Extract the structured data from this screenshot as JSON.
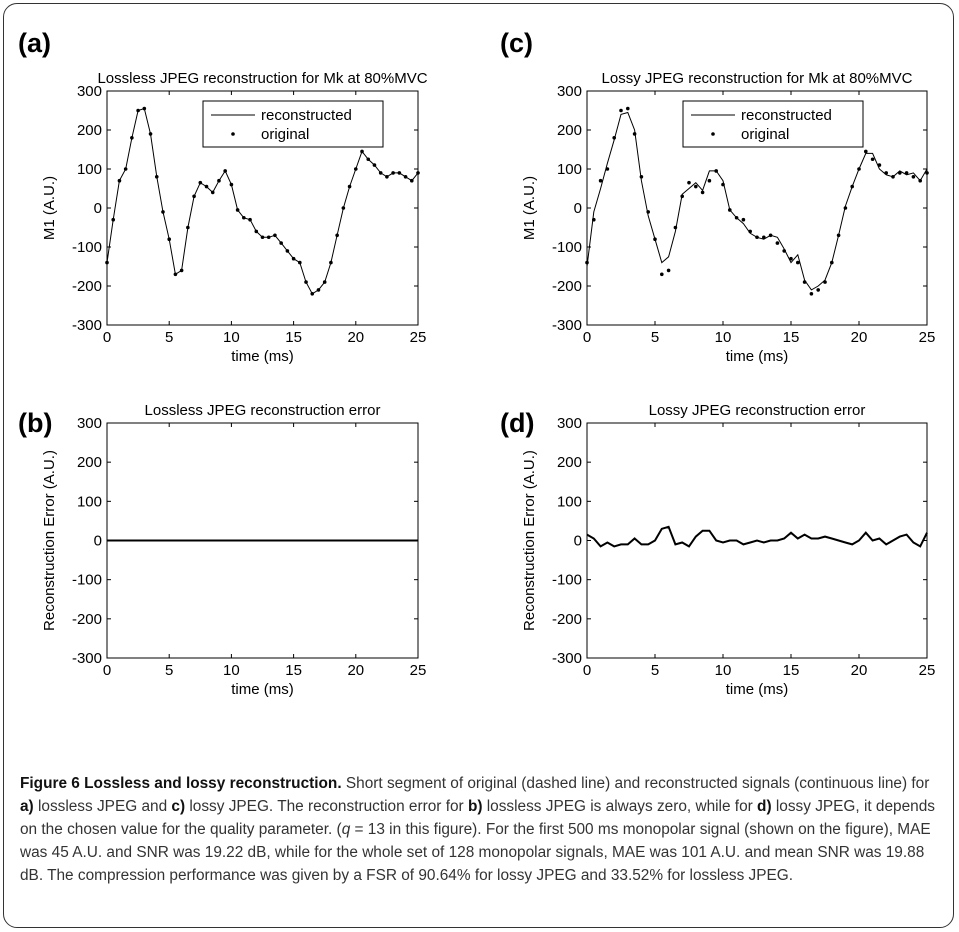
{
  "caption": {
    "label": "Figure 6",
    "heading": "Lossless and lossy reconstruction.",
    "s1": " Short segment of original (dashed line) and reconstructed signals (continuous line) for ",
    "a": "a)",
    "s2": " lossless JPEG and ",
    "c": "c)",
    "s3": " lossy JPEG. The reconstruction error for ",
    "b": "b)",
    "s4": " lossless JPEG is always zero, while for ",
    "d": "d)",
    "s5": " lossy JPEG, it depends on the chosen value for the quality parameter. (",
    "q": "q",
    "s6": " = 13 in this figure). For the first 500 ms monopolar signal (shown on the figure), MAE was 45 A.U. and SNR was 19.22 dB, while for the whole set of 128 monopolar signals, MAE was 101 A.U. and mean SNR was 19.88 dB. The compression performance was given by a FSR of 90.64% for lossy JPEG and 33.52% for lossless JPEG."
  },
  "chart_data": [
    {
      "type": "line",
      "panel_label": "(a)",
      "title": "Lossless JPEG reconstruction for Mk at 80%MVC",
      "xlabel": "time (ms)",
      "ylabel": "M1 (A.U.)",
      "xlim": [
        0,
        25
      ],
      "ylim": [
        -300,
        300
      ],
      "xticks": [
        "0",
        "5",
        "10",
        "15",
        "20",
        "25"
      ],
      "yticks": [
        "300",
        "200",
        "100",
        "0",
        "-100",
        "-200",
        "-300"
      ],
      "legend": {
        "position": "top-center",
        "line_label": "reconstructed",
        "dot_label": "original"
      },
      "series": [
        {
          "name": "original",
          "x": [
            0,
            0.5,
            1,
            1.5,
            2,
            2.5,
            3,
            3.5,
            4,
            4.5,
            5,
            5.5,
            6,
            6.5,
            7,
            7.5,
            8,
            8.5,
            9,
            9.5,
            10,
            10.5,
            11,
            11.5,
            12,
            12.5,
            13,
            13.5,
            14,
            14.5,
            15,
            15.5,
            16,
            16.5,
            17,
            17.5,
            18,
            18.5,
            19,
            19.5,
            20,
            20.5,
            21,
            21.5,
            22,
            22.5,
            23,
            23.5,
            24,
            24.5,
            25
          ],
          "y": [
            -140,
            -30,
            70,
            100,
            180,
            250,
            255,
            190,
            80,
            -10,
            -80,
            -170,
            -160,
            -50,
            30,
            65,
            55,
            40,
            70,
            95,
            60,
            -5,
            -25,
            -30,
            -60,
            -75,
            -75,
            -70,
            -90,
            -110,
            -130,
            -140,
            -190,
            -220,
            -210,
            -190,
            -140,
            -70,
            0,
            55,
            100,
            145,
            125,
            110,
            90,
            80,
            90,
            90,
            80,
            70,
            90
          ]
        },
        {
          "name": "reconstructed",
          "x": [
            0,
            0.5,
            1,
            1.5,
            2,
            2.5,
            3,
            3.5,
            4,
            4.5,
            5,
            5.5,
            6,
            6.5,
            7,
            7.5,
            8,
            8.5,
            9,
            9.5,
            10,
            10.5,
            11,
            11.5,
            12,
            12.5,
            13,
            13.5,
            14,
            14.5,
            15,
            15.5,
            16,
            16.5,
            17,
            17.5,
            18,
            18.5,
            19,
            19.5,
            20,
            20.5,
            21,
            21.5,
            22,
            22.5,
            23,
            23.5,
            24,
            24.5,
            25
          ],
          "y": [
            -140,
            -30,
            70,
            100,
            180,
            250,
            255,
            190,
            80,
            -10,
            -80,
            -170,
            -160,
            -50,
            30,
            65,
            55,
            40,
            70,
            95,
            60,
            -5,
            -25,
            -30,
            -60,
            -75,
            -75,
            -70,
            -90,
            -110,
            -130,
            -140,
            -190,
            -220,
            -210,
            -190,
            -140,
            -70,
            0,
            55,
            100,
            145,
            125,
            110,
            90,
            80,
            90,
            90,
            80,
            70,
            90
          ]
        }
      ]
    },
    {
      "type": "line",
      "panel_label": "(c)",
      "title": "Lossy JPEG reconstruction for Mk at 80%MVC",
      "xlabel": "time (ms)",
      "ylabel": "M1 (A.U.)",
      "xlim": [
        0,
        25
      ],
      "ylim": [
        -300,
        300
      ],
      "xticks": [
        "0",
        "5",
        "10",
        "15",
        "20",
        "25"
      ],
      "yticks": [
        "300",
        "200",
        "100",
        "0",
        "-100",
        "-200",
        "-300"
      ],
      "legend": {
        "position": "top-center",
        "line_label": "reconstructed",
        "dot_label": "original"
      },
      "series": [
        {
          "name": "original",
          "x": [
            0,
            0.5,
            1,
            1.5,
            2,
            2.5,
            3,
            3.5,
            4,
            4.5,
            5,
            5.5,
            6,
            6.5,
            7,
            7.5,
            8,
            8.5,
            9,
            9.5,
            10,
            10.5,
            11,
            11.5,
            12,
            12.5,
            13,
            13.5,
            14,
            14.5,
            15,
            15.5,
            16,
            16.5,
            17,
            17.5,
            18,
            18.5,
            19,
            19.5,
            20,
            20.5,
            21,
            21.5,
            22,
            22.5,
            23,
            23.5,
            24,
            24.5,
            25
          ],
          "y": [
            -140,
            -30,
            70,
            100,
            180,
            250,
            255,
            190,
            80,
            -10,
            -80,
            -170,
            -160,
            -50,
            30,
            65,
            55,
            40,
            70,
            95,
            60,
            -5,
            -25,
            -30,
            -60,
            -75,
            -75,
            -70,
            -90,
            -110,
            -130,
            -140,
            -190,
            -220,
            -210,
            -190,
            -140,
            -70,
            0,
            55,
            100,
            145,
            125,
            110,
            90,
            80,
            90,
            90,
            80,
            70,
            90
          ]
        },
        {
          "name": "reconstructed",
          "x": [
            0,
            0.5,
            1,
            1.5,
            2,
            2.5,
            3,
            3.5,
            4,
            4.5,
            5,
            5.5,
            6,
            6.5,
            7,
            7.5,
            8,
            8.5,
            9,
            9.5,
            10,
            10.5,
            11,
            11.5,
            12,
            12.5,
            13,
            13.5,
            14,
            14.5,
            15,
            15.5,
            16,
            16.5,
            17,
            17.5,
            18,
            18.5,
            19,
            19.5,
            20,
            20.5,
            21,
            21.5,
            22,
            22.5,
            23,
            23.5,
            24,
            24.5,
            25
          ],
          "y": [
            -150,
            -10,
            50,
            115,
            175,
            240,
            245,
            200,
            70,
            -20,
            -80,
            -140,
            -125,
            -60,
            35,
            50,
            65,
            45,
            95,
            95,
            70,
            -5,
            -25,
            -40,
            -65,
            -75,
            -80,
            -70,
            -75,
            -105,
            -140,
            -120,
            -185,
            -210,
            -200,
            -185,
            -140,
            -70,
            5,
            55,
            100,
            140,
            140,
            100,
            85,
            80,
            95,
            85,
            90,
            70,
            100
          ]
        }
      ]
    },
    {
      "type": "line",
      "panel_label": "(b)",
      "title": "Lossless JPEG reconstruction error",
      "xlabel": "time (ms)",
      "ylabel": "Reconstruction Error (A.U.)",
      "xlim": [
        0,
        25
      ],
      "ylim": [
        -300,
        300
      ],
      "xticks": [
        "0",
        "5",
        "10",
        "15",
        "20",
        "25"
      ],
      "yticks": [
        "300",
        "200",
        "100",
        "0",
        "-100",
        "-200",
        "-300"
      ],
      "series": [
        {
          "x": [
            0,
            25
          ],
          "y": [
            0,
            0
          ]
        }
      ]
    },
    {
      "type": "line",
      "panel_label": "(d)",
      "title": "Lossy JPEG reconstruction error",
      "xlabel": "time (ms)",
      "ylabel": "Reconstruction Error (A.U.)",
      "xlim": [
        0,
        25
      ],
      "ylim": [
        -300,
        300
      ],
      "xticks": [
        "0",
        "5",
        "10",
        "15",
        "20",
        "25"
      ],
      "yticks": [
        "300",
        "200",
        "100",
        "0",
        "-100",
        "-200",
        "-300"
      ],
      "series": [
        {
          "x": [
            0,
            0.5,
            1,
            1.5,
            2,
            2.5,
            3,
            3.5,
            4,
            4.5,
            5,
            5.5,
            6,
            6.5,
            7,
            7.5,
            8,
            8.5,
            9,
            9.5,
            10,
            10.5,
            11,
            11.5,
            12,
            12.5,
            13,
            13.5,
            14,
            14.5,
            15,
            15.5,
            16,
            16.5,
            17,
            17.5,
            18,
            18.5,
            19,
            19.5,
            20,
            20.5,
            21,
            21.5,
            22,
            22.5,
            23,
            23.5,
            24,
            24.5,
            25
          ],
          "y": [
            15,
            5,
            -15,
            -5,
            -15,
            -10,
            -10,
            5,
            -10,
            -10,
            0,
            30,
            35,
            -10,
            -5,
            -15,
            10,
            25,
            25,
            0,
            -5,
            0,
            0,
            -10,
            -5,
            0,
            -5,
            0,
            0,
            5,
            20,
            5,
            15,
            5,
            5,
            10,
            5,
            0,
            -5,
            -10,
            0,
            20,
            0,
            5,
            -10,
            0,
            10,
            15,
            -5,
            -15,
            20
          ]
        }
      ]
    }
  ]
}
